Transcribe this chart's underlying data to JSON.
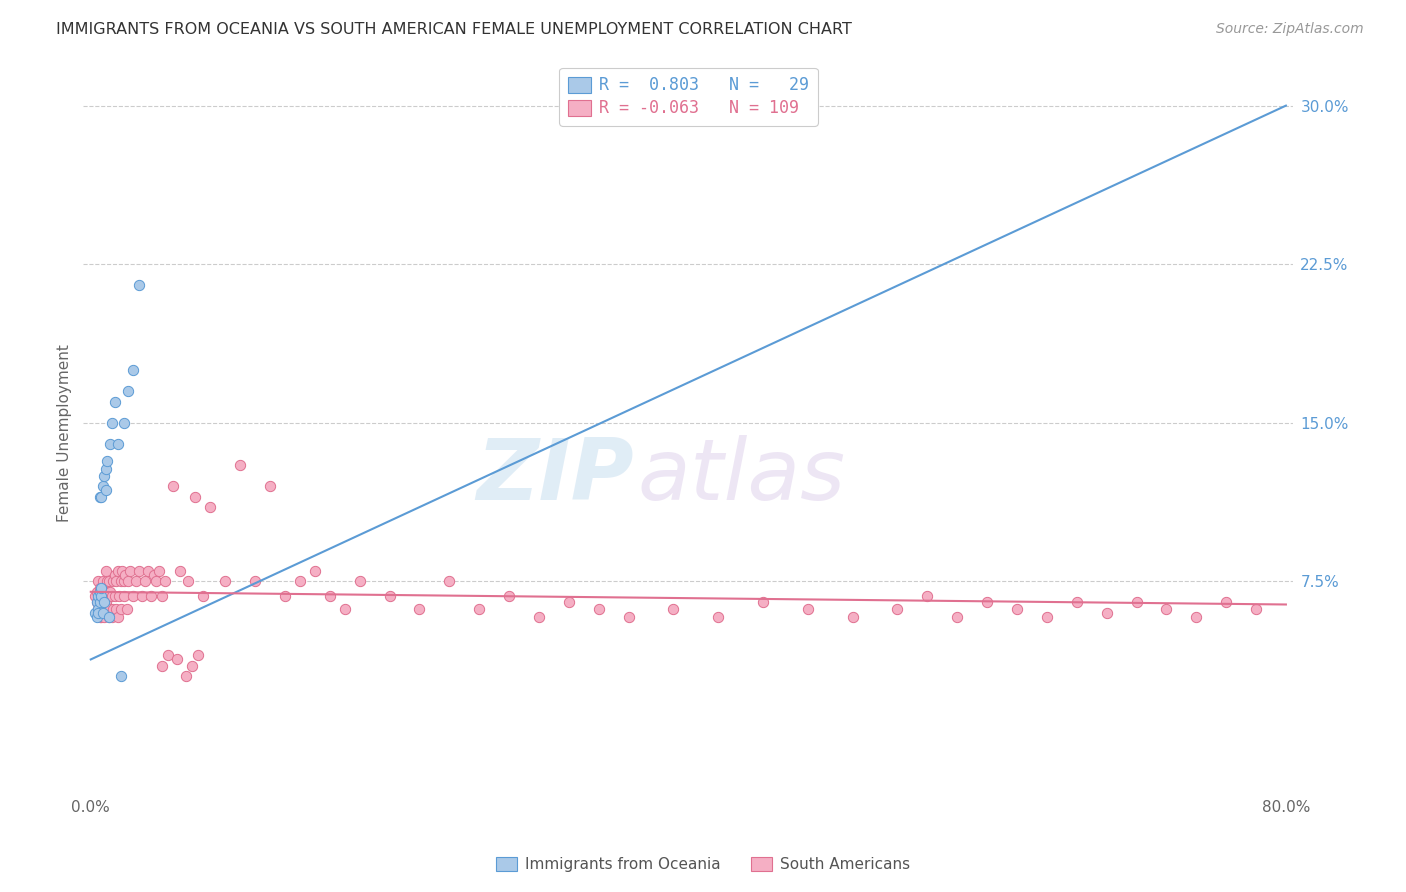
{
  "title": "IMMIGRANTS FROM OCEANIA VS SOUTH AMERICAN FEMALE UNEMPLOYMENT CORRELATION CHART",
  "source": "Source: ZipAtlas.com",
  "ylabel": "Female Unemployment",
  "yticks": [
    0.0,
    0.075,
    0.15,
    0.225,
    0.3
  ],
  "ytick_labels": [
    "",
    "7.5%",
    "15.0%",
    "22.5%",
    "30.0%"
  ],
  "xlim": [
    0.0,
    0.8
  ],
  "ylim": [
    -0.025,
    0.315
  ],
  "legend_r1": "R =  0.803   N =   29",
  "legend_r2": "R = -0.063   N = 109",
  "color_oceania": "#aac9e8",
  "color_sa": "#f5afc4",
  "line_color_oceania": "#5b9bd5",
  "line_color_sa": "#e07090",
  "watermark_zip": "ZIP",
  "watermark_atlas": "atlas",
  "legend_label_oceania": "Immigrants from Oceania",
  "legend_label_sa": "South Americans",
  "oceania_x": [
    0.003,
    0.004,
    0.004,
    0.005,
    0.005,
    0.005,
    0.006,
    0.006,
    0.006,
    0.007,
    0.007,
    0.007,
    0.008,
    0.008,
    0.009,
    0.009,
    0.01,
    0.01,
    0.011,
    0.012,
    0.013,
    0.014,
    0.016,
    0.018,
    0.02,
    0.022,
    0.025,
    0.028,
    0.032
  ],
  "oceania_y": [
    0.06,
    0.058,
    0.065,
    0.062,
    0.068,
    0.06,
    0.065,
    0.07,
    0.115,
    0.068,
    0.072,
    0.115,
    0.12,
    0.06,
    0.125,
    0.065,
    0.118,
    0.128,
    0.132,
    0.058,
    0.14,
    0.15,
    0.16,
    0.14,
    0.03,
    0.15,
    0.165,
    0.175,
    0.215
  ],
  "sa_x": [
    0.003,
    0.004,
    0.004,
    0.005,
    0.005,
    0.005,
    0.006,
    0.006,
    0.006,
    0.007,
    0.007,
    0.007,
    0.008,
    0.008,
    0.008,
    0.009,
    0.009,
    0.009,
    0.01,
    0.01,
    0.01,
    0.011,
    0.011,
    0.012,
    0.012,
    0.012,
    0.013,
    0.013,
    0.014,
    0.014,
    0.015,
    0.015,
    0.016,
    0.016,
    0.017,
    0.017,
    0.018,
    0.018,
    0.019,
    0.02,
    0.02,
    0.021,
    0.022,
    0.022,
    0.023,
    0.024,
    0.025,
    0.026,
    0.028,
    0.03,
    0.032,
    0.034,
    0.036,
    0.038,
    0.04,
    0.042,
    0.044,
    0.046,
    0.048,
    0.05,
    0.055,
    0.06,
    0.065,
    0.07,
    0.075,
    0.08,
    0.09,
    0.1,
    0.11,
    0.12,
    0.13,
    0.14,
    0.15,
    0.16,
    0.17,
    0.18,
    0.2,
    0.22,
    0.24,
    0.26,
    0.28,
    0.3,
    0.32,
    0.34,
    0.36,
    0.39,
    0.42,
    0.45,
    0.48,
    0.51,
    0.54,
    0.56,
    0.58,
    0.6,
    0.62,
    0.64,
    0.66,
    0.68,
    0.7,
    0.72,
    0.74,
    0.76,
    0.78,
    0.048,
    0.052,
    0.058,
    0.064,
    0.068,
    0.072
  ],
  "sa_y": [
    0.068,
    0.065,
    0.07,
    0.06,
    0.075,
    0.062,
    0.068,
    0.072,
    0.058,
    0.065,
    0.07,
    0.058,
    0.062,
    0.068,
    0.075,
    0.06,
    0.072,
    0.058,
    0.065,
    0.07,
    0.08,
    0.075,
    0.062,
    0.068,
    0.058,
    0.075,
    0.062,
    0.07,
    0.068,
    0.058,
    0.075,
    0.062,
    0.068,
    0.078,
    0.062,
    0.075,
    0.058,
    0.08,
    0.068,
    0.075,
    0.062,
    0.08,
    0.068,
    0.075,
    0.078,
    0.062,
    0.075,
    0.08,
    0.068,
    0.075,
    0.08,
    0.068,
    0.075,
    0.08,
    0.068,
    0.078,
    0.075,
    0.08,
    0.068,
    0.075,
    0.12,
    0.08,
    0.075,
    0.115,
    0.068,
    0.11,
    0.075,
    0.13,
    0.075,
    0.12,
    0.068,
    0.075,
    0.08,
    0.068,
    0.062,
    0.075,
    0.068,
    0.062,
    0.075,
    0.062,
    0.068,
    0.058,
    0.065,
    0.062,
    0.058,
    0.062,
    0.058,
    0.065,
    0.062,
    0.058,
    0.062,
    0.068,
    0.058,
    0.065,
    0.062,
    0.058,
    0.065,
    0.06,
    0.065,
    0.062,
    0.058,
    0.065,
    0.062,
    0.035,
    0.04,
    0.038,
    0.03,
    0.035,
    0.04
  ],
  "oc_line_x0": 0.0,
  "oc_line_y0": 0.038,
  "oc_line_x1": 0.8,
  "oc_line_y1": 0.3,
  "sa_line_x0": 0.0,
  "sa_line_y0": 0.07,
  "sa_line_x1": 0.8,
  "sa_line_y1": 0.064
}
